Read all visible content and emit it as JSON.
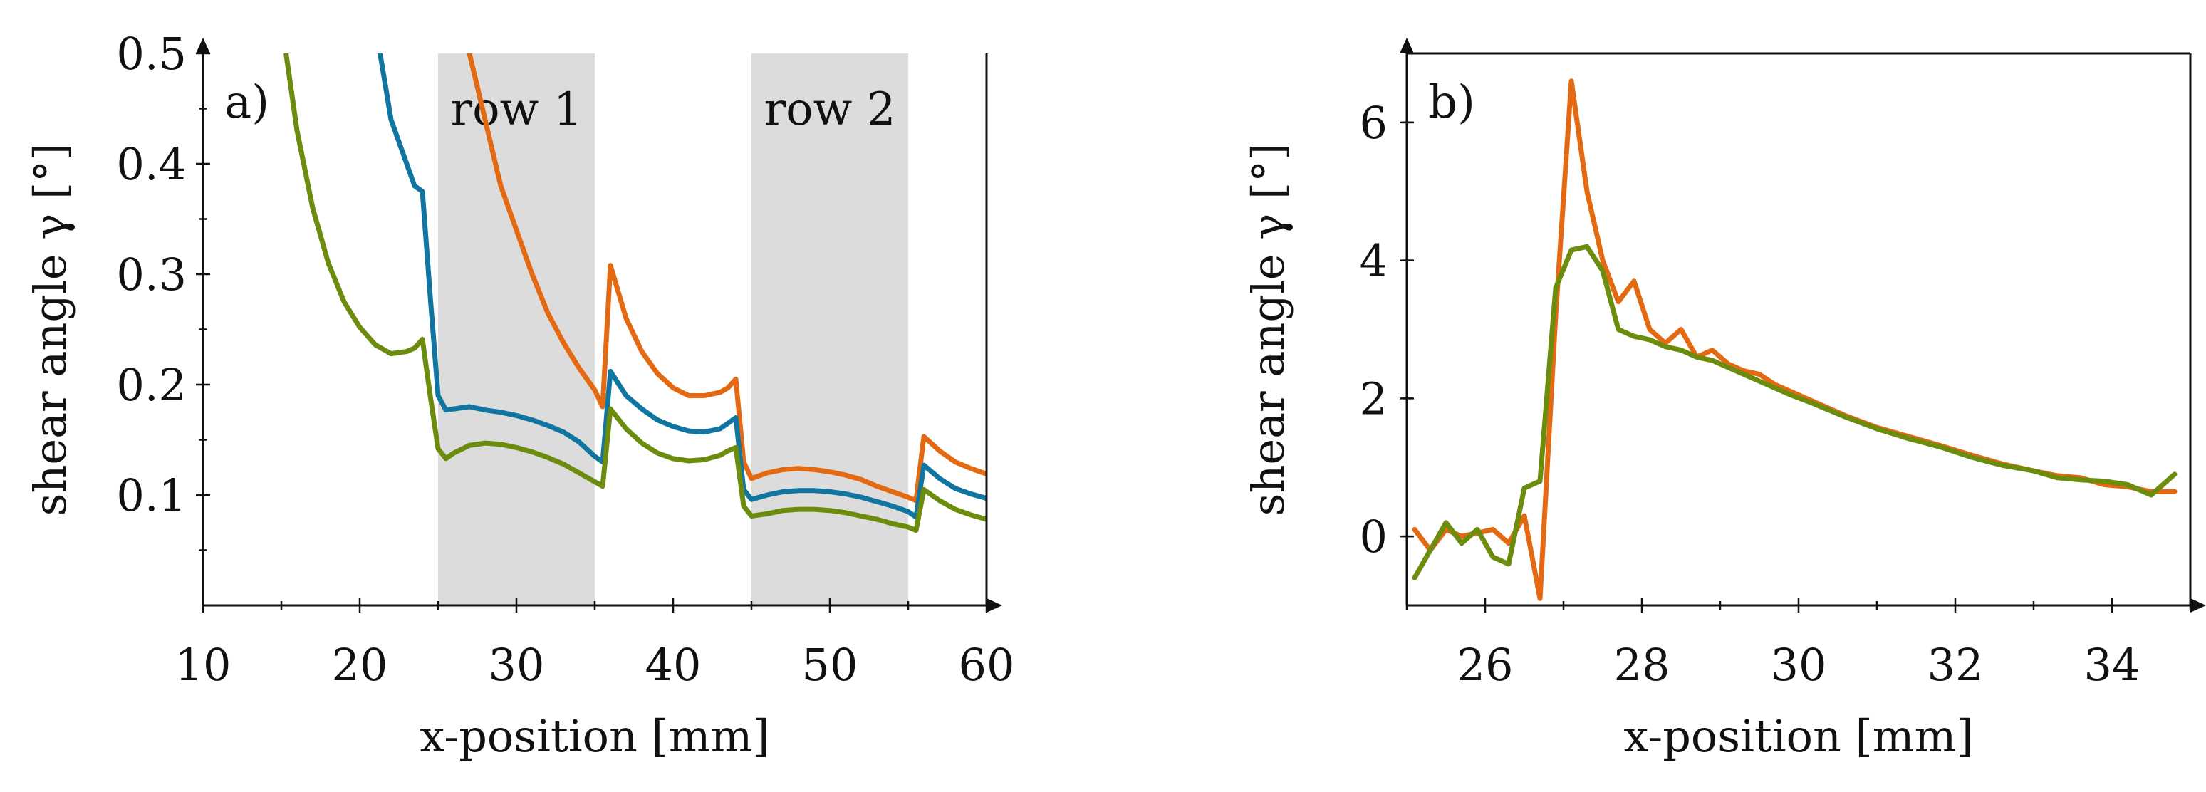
{
  "chart_data": [
    {
      "type": "line",
      "panel_label": "a)",
      "xlabel": "x-position [mm]",
      "ylabel": "shear angle γ [°]",
      "xlim": [
        10,
        60
      ],
      "ylim": [
        0,
        0.5
      ],
      "xticks": [
        10,
        20,
        30,
        40,
        50,
        60
      ],
      "xtick_labels": [
        "10",
        "20",
        "30",
        "40",
        "50",
        "60"
      ],
      "yticks": [
        0.1,
        0.2,
        0.3,
        0.4,
        0.5
      ],
      "ytick_labels": [
        "0.1",
        "0.2",
        "0.3",
        "0.4",
        "0.5"
      ],
      "bands": [
        {
          "label": "row 1",
          "x0": 25,
          "x1": 35,
          "color": "#dcdcdc"
        },
        {
          "label": "row 2",
          "x0": 45,
          "x1": 55,
          "color": "#dcdcdc"
        }
      ],
      "series": [
        {
          "name": "orange",
          "color": "#e36a12",
          "x": [
            27,
            28,
            29,
            30,
            31,
            32,
            33,
            34,
            35,
            35.5,
            36,
            37,
            38,
            39,
            40,
            41,
            42,
            43,
            43.5,
            44,
            44.5,
            45,
            46,
            47,
            48,
            49,
            50,
            51,
            52,
            53,
            54,
            55,
            55.5,
            56,
            57,
            58,
            59,
            60
          ],
          "y": [
            0.5,
            0.44,
            0.38,
            0.34,
            0.3,
            0.265,
            0.238,
            0.215,
            0.195,
            0.18,
            0.308,
            0.26,
            0.23,
            0.21,
            0.197,
            0.19,
            0.19,
            0.193,
            0.197,
            0.205,
            0.13,
            0.115,
            0.12,
            0.123,
            0.124,
            0.123,
            0.121,
            0.118,
            0.114,
            0.108,
            0.103,
            0.098,
            0.095,
            0.153,
            0.14,
            0.13,
            0.124,
            0.119
          ]
        },
        {
          "name": "blue",
          "color": "#1075a0",
          "x": [
            21.3,
            22,
            23,
            23.5,
            24,
            24.5,
            25,
            25.5,
            26,
            27,
            28,
            29,
            30,
            31,
            32,
            33,
            34,
            35,
            35.5,
            36,
            37,
            38,
            39,
            40,
            41,
            42,
            43,
            43.5,
            44,
            44.5,
            45,
            46,
            47,
            48,
            49,
            50,
            51,
            52,
            53,
            54,
            55,
            55.5,
            56,
            57,
            58,
            59,
            60
          ],
          "y": [
            0.5,
            0.44,
            0.4,
            0.38,
            0.375,
            0.28,
            0.19,
            0.177,
            0.178,
            0.18,
            0.177,
            0.175,
            0.172,
            0.168,
            0.163,
            0.157,
            0.148,
            0.135,
            0.13,
            0.212,
            0.19,
            0.178,
            0.168,
            0.162,
            0.158,
            0.157,
            0.16,
            0.165,
            0.17,
            0.105,
            0.096,
            0.1,
            0.103,
            0.104,
            0.104,
            0.103,
            0.101,
            0.098,
            0.094,
            0.09,
            0.085,
            0.08,
            0.127,
            0.115,
            0.106,
            0.101,
            0.097
          ]
        },
        {
          "name": "green",
          "color": "#6b8c0d",
          "x": [
            15.3,
            16,
            17,
            18,
            19,
            20,
            21,
            22,
            23,
            23.5,
            24,
            24.5,
            25,
            25.5,
            26,
            27,
            28,
            29,
            30,
            31,
            32,
            33,
            34,
            35,
            35.5,
            36,
            37,
            38,
            39,
            40,
            41,
            42,
            43,
            43.5,
            44,
            44.5,
            45,
            46,
            47,
            48,
            49,
            50,
            51,
            52,
            53,
            54,
            55,
            55.5,
            56,
            57,
            58,
            59,
            60
          ],
          "y": [
            0.5,
            0.43,
            0.36,
            0.31,
            0.275,
            0.252,
            0.236,
            0.228,
            0.23,
            0.233,
            0.241,
            0.19,
            0.142,
            0.133,
            0.138,
            0.145,
            0.147,
            0.146,
            0.143,
            0.139,
            0.134,
            0.128,
            0.12,
            0.112,
            0.108,
            0.178,
            0.16,
            0.147,
            0.138,
            0.133,
            0.131,
            0.132,
            0.136,
            0.14,
            0.143,
            0.09,
            0.081,
            0.083,
            0.086,
            0.087,
            0.087,
            0.086,
            0.084,
            0.081,
            0.078,
            0.074,
            0.071,
            0.068,
            0.105,
            0.095,
            0.087,
            0.082,
            0.078
          ]
        }
      ]
    },
    {
      "type": "line",
      "panel_label": "b)",
      "xlabel": "x-position [mm]",
      "ylabel": "shear angle γ [°]",
      "xlim": [
        25,
        35
      ],
      "ylim": [
        -1,
        7
      ],
      "xticks": [
        26,
        28,
        30,
        32,
        34
      ],
      "xtick_labels": [
        "26",
        "28",
        "30",
        "32",
        "34"
      ],
      "yticks": [
        0,
        2,
        4,
        6
      ],
      "ytick_labels": [
        "0",
        "2",
        "4",
        "6"
      ],
      "series": [
        {
          "name": "orange",
          "color": "#e36a12",
          "x": [
            25.1,
            25.3,
            25.5,
            25.7,
            25.9,
            26.1,
            26.3,
            26.5,
            26.7,
            26.9,
            27.1,
            27.3,
            27.5,
            27.7,
            27.9,
            28.1,
            28.3,
            28.5,
            28.7,
            28.9,
            29.1,
            29.3,
            29.5,
            29.7,
            29.9,
            30.2,
            30.6,
            31,
            31.4,
            31.8,
            32.2,
            32.6,
            33,
            33.3,
            33.6,
            33.9,
            34.2,
            34.5,
            34.8
          ],
          "y": [
            0.1,
            -0.2,
            0.1,
            0.0,
            0.05,
            0.1,
            -0.1,
            0.3,
            -0.9,
            3.2,
            6.6,
            5.0,
            4.0,
            3.4,
            3.7,
            3.0,
            2.8,
            3.0,
            2.6,
            2.7,
            2.5,
            2.4,
            2.35,
            2.2,
            2.1,
            1.95,
            1.75,
            1.58,
            1.45,
            1.32,
            1.18,
            1.05,
            0.95,
            0.88,
            0.85,
            0.75,
            0.72,
            0.65,
            0.65
          ]
        },
        {
          "name": "green",
          "color": "#6b8c0d",
          "x": [
            25.1,
            25.3,
            25.5,
            25.7,
            25.9,
            26.1,
            26.3,
            26.5,
            26.7,
            26.9,
            27.1,
            27.3,
            27.5,
            27.7,
            27.9,
            28.1,
            28.3,
            28.5,
            28.7,
            28.9,
            29.1,
            29.3,
            29.5,
            29.7,
            29.9,
            30.2,
            30.6,
            31,
            31.4,
            31.8,
            32.2,
            32.6,
            33,
            33.3,
            33.6,
            33.9,
            34.2,
            34.5,
            34.8
          ],
          "y": [
            -0.6,
            -0.2,
            0.2,
            -0.1,
            0.1,
            -0.3,
            -0.4,
            0.7,
            0.8,
            3.6,
            4.15,
            4.2,
            3.85,
            3.0,
            2.9,
            2.85,
            2.75,
            2.7,
            2.6,
            2.55,
            2.45,
            2.35,
            2.25,
            2.15,
            2.05,
            1.92,
            1.73,
            1.56,
            1.42,
            1.3,
            1.15,
            1.03,
            0.95,
            0.85,
            0.82,
            0.8,
            0.75,
            0.6,
            0.9
          ]
        }
      ]
    }
  ]
}
